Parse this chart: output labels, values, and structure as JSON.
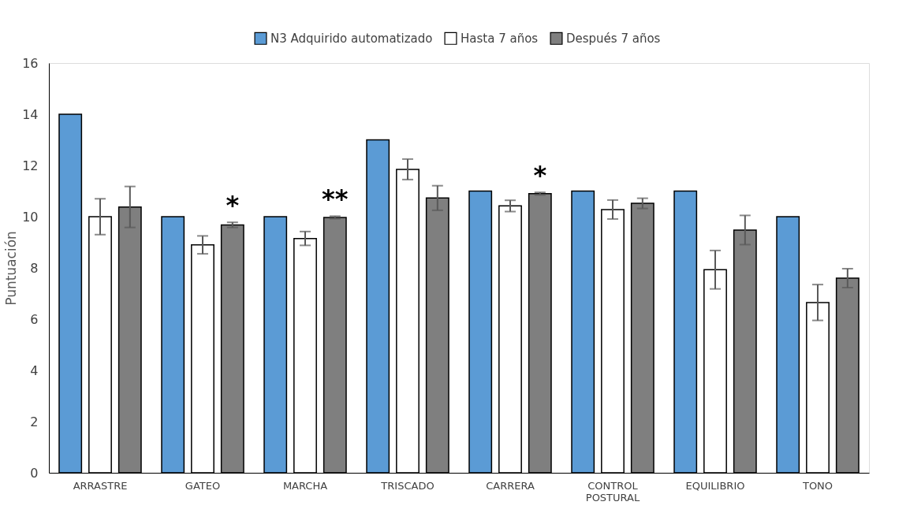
{
  "chart_data": {
    "type": "bar",
    "ylabel": "Puntuación",
    "categories": [
      "ARRASTRE",
      "GATEO",
      "MARCHA",
      "TRISCADO",
      "CARRERA",
      "CONTROL POSTURAL",
      "EQUILIBRIO",
      "TONO"
    ],
    "series": [
      {
        "name": "N3 Adquirido automatizado",
        "color": "#5b9bd5",
        "values": [
          14,
          10,
          10,
          13,
          11,
          11,
          11,
          10
        ]
      },
      {
        "name": "Hasta 7 años",
        "color": "#ffffff",
        "values": [
          10.0,
          8.9,
          9.15,
          11.85,
          10.42,
          10.28,
          7.93,
          6.65
        ],
        "errors": [
          0.7,
          0.35,
          0.27,
          0.4,
          0.22,
          0.37,
          0.75,
          0.7
        ]
      },
      {
        "name": "Después 7 años",
        "color": "#7f7f7f",
        "values": [
          10.38,
          9.68,
          9.97,
          10.73,
          10.9,
          10.52,
          9.48,
          7.6
        ],
        "errors": [
          0.8,
          0.1,
          0.05,
          0.48,
          0.05,
          0.2,
          0.57,
          0.37
        ]
      }
    ],
    "ylim": [
      0,
      16
    ],
    "yticks": [
      0,
      2,
      4,
      6,
      8,
      10,
      12,
      14,
      16
    ],
    "grid": false,
    "legend": "top",
    "annotations": [
      "*",
      "**",
      "*"
    ]
  }
}
